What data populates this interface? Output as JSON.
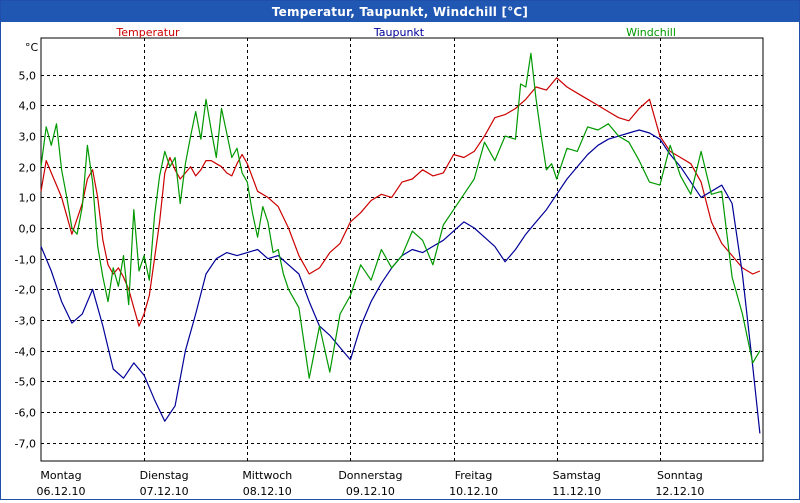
{
  "window": {
    "title": "Temperatur, Taupunkt, Windchill [°C]"
  },
  "chart_data": {
    "type": "line",
    "title": "Temperatur, Taupunkt, Windchill [°C]",
    "ylabel": "°C",
    "ylim": [
      -7.6,
      6.2
    ],
    "yticks": [
      5.0,
      4.0,
      3.0,
      2.0,
      1.0,
      0.0,
      -1.0,
      -2.0,
      -3.0,
      -4.0,
      -5.0,
      -6.0,
      -7.0
    ],
    "ytick_labels": [
      "5,0",
      "4,0",
      "3,0",
      "2,0",
      "1,0",
      "0,0",
      "-1,0",
      "-2,0",
      "-3,0",
      "-4,0",
      "-5,0",
      "-6,0",
      "-7,0"
    ],
    "xlim": [
      0,
      7
    ],
    "x_days": [
      {
        "day": "Montag",
        "date": "06.12.10"
      },
      {
        "day": "Dienstag",
        "date": "07.12.10"
      },
      {
        "day": "Mittwoch",
        "date": "08.12.10"
      },
      {
        "day": "Donnerstag",
        "date": "09.12.10"
      },
      {
        "day": "Freitag",
        "date": "10.12.10"
      },
      {
        "day": "Samstag",
        "date": "11.12.10"
      },
      {
        "day": "Sonntag",
        "date": "12.12.10"
      }
    ],
    "grid": true,
    "legend_position": "top",
    "series": [
      {
        "name": "Temperatur",
        "color": "#cc0000",
        "x": [
          0.0,
          0.05,
          0.1,
          0.15,
          0.2,
          0.25,
          0.3,
          0.35,
          0.4,
          0.45,
          0.5,
          0.55,
          0.6,
          0.65,
          0.7,
          0.75,
          0.8,
          0.85,
          0.9,
          0.95,
          1.0,
          1.05,
          1.1,
          1.15,
          1.2,
          1.25,
          1.3,
          1.35,
          1.4,
          1.45,
          1.5,
          1.55,
          1.6,
          1.65,
          1.7,
          1.75,
          1.8,
          1.85,
          1.9,
          1.95,
          2.0,
          2.1,
          2.2,
          2.3,
          2.4,
          2.5,
          2.6,
          2.7,
          2.8,
          2.9,
          3.0,
          3.1,
          3.2,
          3.3,
          3.4,
          3.5,
          3.6,
          3.7,
          3.8,
          3.9,
          4.0,
          4.1,
          4.2,
          4.3,
          4.4,
          4.5,
          4.6,
          4.7,
          4.8,
          4.9,
          5.0,
          5.1,
          5.2,
          5.3,
          5.4,
          5.5,
          5.6,
          5.7,
          5.8,
          5.9,
          6.0,
          6.1,
          6.2,
          6.3,
          6.4,
          6.5,
          6.6,
          6.7,
          6.8,
          6.9,
          6.97
        ],
        "values": [
          1.2,
          2.2,
          1.8,
          1.4,
          1.0,
          0.4,
          -0.2,
          0.3,
          0.8,
          1.6,
          1.9,
          1.0,
          -0.4,
          -1.2,
          -1.5,
          -1.3,
          -1.6,
          -2.0,
          -2.6,
          -3.2,
          -2.8,
          -2.2,
          -1.0,
          0.2,
          1.8,
          2.3,
          1.9,
          1.6,
          1.8,
          2.0,
          1.7,
          1.9,
          2.2,
          2.2,
          2.1,
          2.0,
          1.8,
          1.7,
          2.1,
          2.4,
          2.1,
          1.2,
          1.0,
          0.7,
          0.0,
          -0.9,
          -1.5,
          -1.3,
          -0.8,
          -0.5,
          0.2,
          0.5,
          0.9,
          1.1,
          1.0,
          1.5,
          1.6,
          1.9,
          1.7,
          1.8,
          2.4,
          2.3,
          2.5,
          3.0,
          3.6,
          3.7,
          3.9,
          4.2,
          4.6,
          4.5,
          4.9,
          4.6,
          4.4,
          4.2,
          4.0,
          3.8,
          3.6,
          3.5,
          3.9,
          4.2,
          3.0,
          2.5,
          2.3,
          2.1,
          1.5,
          0.2,
          -0.5,
          -0.9,
          -1.3,
          -1.5,
          -1.4
        ]
      },
      {
        "name": "Taupunkt",
        "color": "#000099",
        "x": [
          0.0,
          0.1,
          0.2,
          0.3,
          0.4,
          0.5,
          0.6,
          0.7,
          0.8,
          0.9,
          1.0,
          1.1,
          1.2,
          1.3,
          1.4,
          1.5,
          1.6,
          1.7,
          1.8,
          1.9,
          2.0,
          2.1,
          2.2,
          2.3,
          2.4,
          2.5,
          2.6,
          2.7,
          2.8,
          2.9,
          3.0,
          3.1,
          3.2,
          3.3,
          3.4,
          3.5,
          3.6,
          3.7,
          3.8,
          3.9,
          4.0,
          4.1,
          4.2,
          4.3,
          4.4,
          4.5,
          4.6,
          4.7,
          4.8,
          4.9,
          5.0,
          5.1,
          5.2,
          5.3,
          5.4,
          5.5,
          5.6,
          5.7,
          5.8,
          5.9,
          6.0,
          6.1,
          6.2,
          6.3,
          6.4,
          6.5,
          6.6,
          6.7,
          6.8,
          6.9,
          6.97
        ],
        "values": [
          -0.6,
          -1.4,
          -2.4,
          -3.1,
          -2.8,
          -2.0,
          -3.2,
          -4.6,
          -4.9,
          -4.4,
          -4.8,
          -5.6,
          -6.3,
          -5.8,
          -4.0,
          -2.8,
          -1.5,
          -1.0,
          -0.8,
          -0.9,
          -0.8,
          -0.7,
          -1.0,
          -0.9,
          -1.2,
          -1.5,
          -2.4,
          -3.2,
          -3.5,
          -3.9,
          -4.3,
          -3.2,
          -2.4,
          -1.8,
          -1.3,
          -0.9,
          -0.7,
          -0.8,
          -0.6,
          -0.4,
          -0.1,
          0.2,
          0.0,
          -0.3,
          -0.6,
          -1.1,
          -0.7,
          -0.2,
          0.2,
          0.6,
          1.1,
          1.6,
          2.0,
          2.4,
          2.7,
          2.9,
          3.0,
          3.1,
          3.2,
          3.1,
          2.9,
          2.4,
          2.0,
          1.5,
          1.0,
          1.2,
          1.4,
          0.8,
          -1.5,
          -4.5,
          -6.7
        ]
      },
      {
        "name": "Windchill",
        "color": "#009900",
        "x": [
          0.0,
          0.05,
          0.1,
          0.15,
          0.2,
          0.25,
          0.3,
          0.35,
          0.4,
          0.45,
          0.5,
          0.55,
          0.6,
          0.65,
          0.7,
          0.75,
          0.8,
          0.85,
          0.9,
          0.95,
          1.0,
          1.05,
          1.1,
          1.15,
          1.2,
          1.25,
          1.3,
          1.35,
          1.4,
          1.45,
          1.5,
          1.55,
          1.6,
          1.65,
          1.7,
          1.75,
          1.8,
          1.85,
          1.9,
          1.95,
          2.0,
          2.05,
          2.1,
          2.15,
          2.2,
          2.25,
          2.3,
          2.35,
          2.4,
          2.5,
          2.6,
          2.7,
          2.8,
          2.9,
          3.0,
          3.1,
          3.2,
          3.3,
          3.4,
          3.5,
          3.6,
          3.7,
          3.8,
          3.9,
          4.0,
          4.1,
          4.2,
          4.3,
          4.4,
          4.5,
          4.6,
          4.65,
          4.7,
          4.75,
          4.8,
          4.85,
          4.9,
          4.95,
          5.0,
          5.1,
          5.2,
          5.3,
          5.4,
          5.5,
          5.6,
          5.7,
          5.8,
          5.9,
          6.0,
          6.1,
          6.2,
          6.3,
          6.4,
          6.5,
          6.6,
          6.7,
          6.8,
          6.9,
          6.97
        ],
        "values": [
          2.0,
          3.3,
          2.7,
          3.4,
          1.9,
          1.0,
          0.0,
          -0.2,
          0.7,
          2.7,
          1.5,
          -0.6,
          -1.6,
          -2.4,
          -1.3,
          -1.9,
          -0.9,
          -2.5,
          0.6,
          -1.4,
          -0.9,
          -1.7,
          0.4,
          1.7,
          2.5,
          2.0,
          2.3,
          0.8,
          2.1,
          3.0,
          3.8,
          2.9,
          4.2,
          3.2,
          2.3,
          3.9,
          3.1,
          2.3,
          2.6,
          1.8,
          1.5,
          0.5,
          -0.3,
          0.7,
          0.2,
          -0.8,
          -0.7,
          -1.5,
          -2.0,
          -2.6,
          -4.9,
          -3.2,
          -4.7,
          -2.8,
          -2.2,
          -1.2,
          -1.7,
          -0.7,
          -1.3,
          -0.9,
          -0.1,
          -0.4,
          -1.2,
          0.1,
          0.6,
          1.1,
          1.6,
          2.8,
          2.2,
          3.0,
          2.9,
          4.7,
          4.6,
          5.7,
          4.2,
          3.0,
          1.9,
          2.1,
          1.6,
          2.6,
          2.5,
          3.3,
          3.2,
          3.4,
          3.0,
          2.8,
          2.2,
          1.5,
          1.4,
          2.7,
          1.7,
          1.1,
          2.5,
          1.1,
          1.2,
          -1.6,
          -2.8,
          -4.4,
          -4.0
        ]
      }
    ]
  }
}
